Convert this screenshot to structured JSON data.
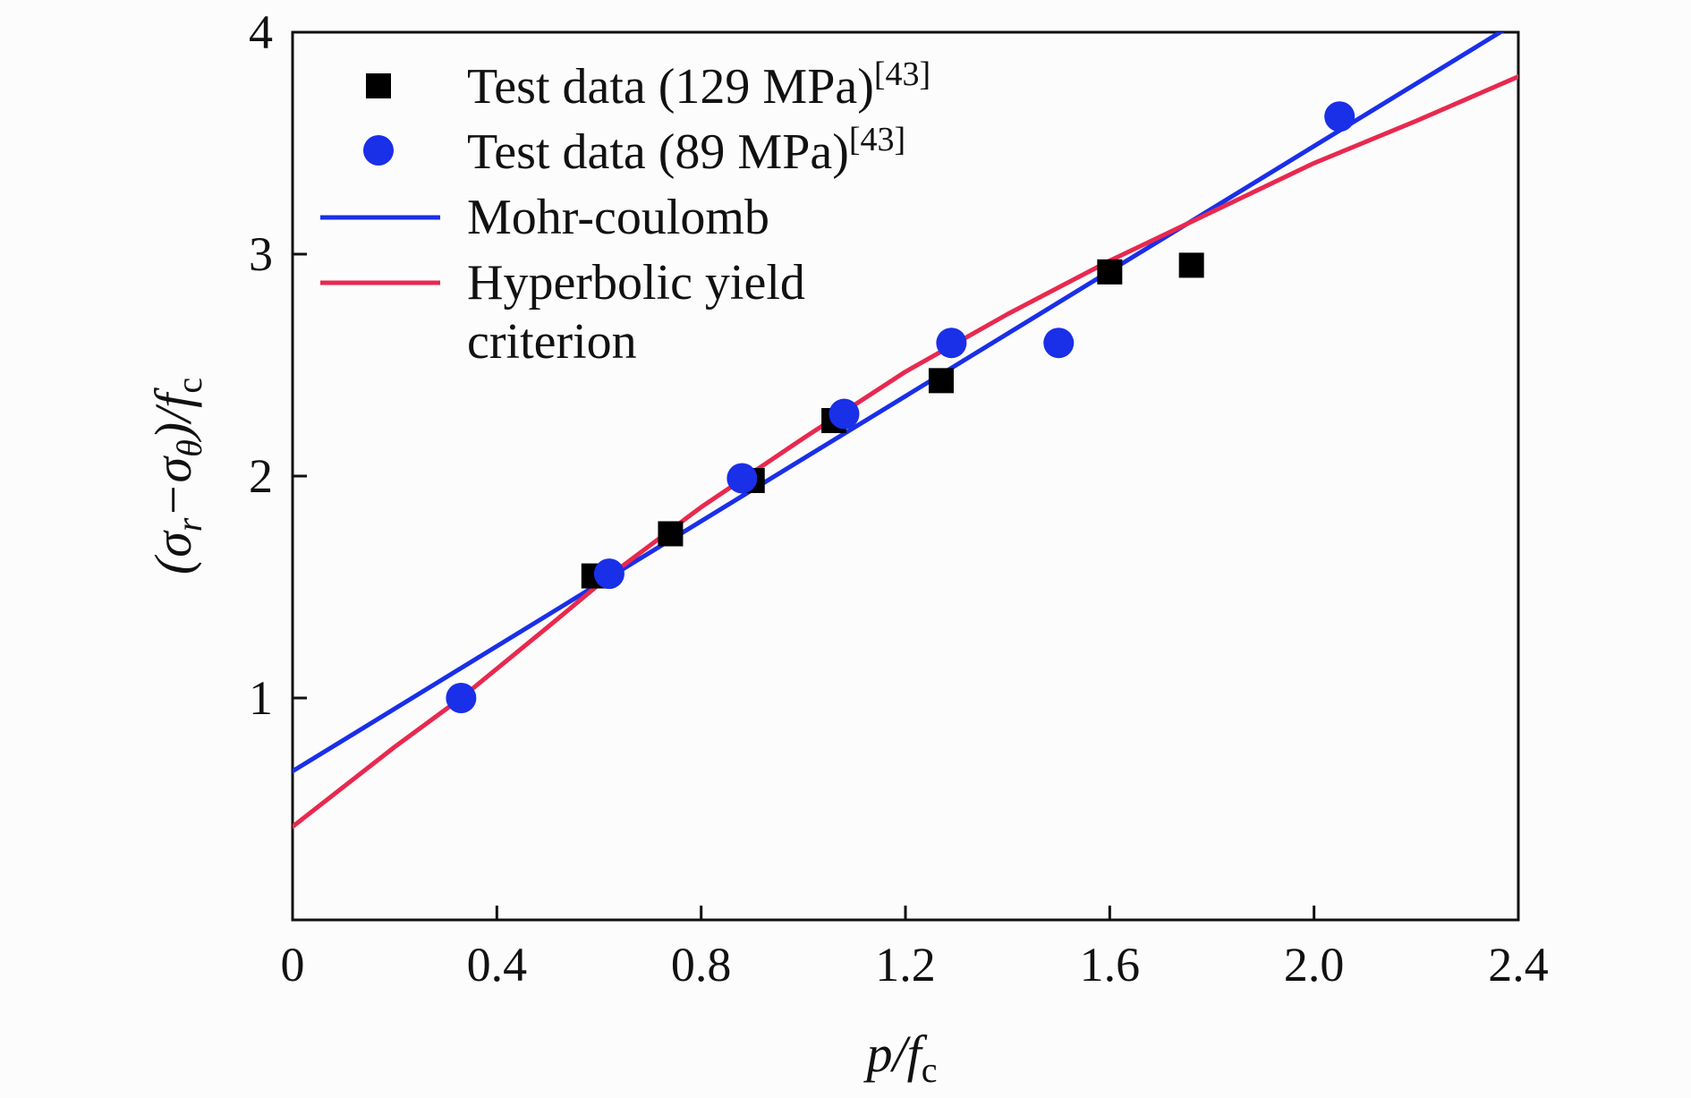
{
  "chart_data": {
    "type": "scatter",
    "xlabel": {
      "main": "p/f",
      "sub": "c"
    },
    "ylabel": {
      "prefix": "(σ",
      "sub1": "r",
      "mid": "−σ",
      "sub2": "θ",
      "suffix": ")/f",
      "sub3": "c"
    },
    "xlim": [
      0,
      2.4
    ],
    "ylim": [
      0,
      4
    ],
    "x_ticks": [
      {
        "value": 0,
        "label": "0"
      },
      {
        "value": 0.4,
        "label": "0.4"
      },
      {
        "value": 0.8,
        "label": "0.8"
      },
      {
        "value": 1.2,
        "label": "1.2"
      },
      {
        "value": 1.6,
        "label": "1.6"
      },
      {
        "value": 2.0,
        "label": "2.0"
      },
      {
        "value": 2.4,
        "label": "2.4"
      }
    ],
    "y_ticks": [
      {
        "value": 1,
        "label": "1"
      },
      {
        "value": 2,
        "label": "2"
      },
      {
        "value": 3,
        "label": "3"
      },
      {
        "value": 4,
        "label": "4"
      }
    ],
    "grid": false,
    "legend_position": "top-left",
    "series": [
      {
        "name": "Test data (129 MPa)",
        "name_sup": "[43]",
        "kind": "scatter",
        "marker": "square",
        "color": "#000000",
        "points": [
          {
            "x": 0.59,
            "y": 1.55
          },
          {
            "x": 0.74,
            "y": 1.74
          },
          {
            "x": 0.9,
            "y": 1.98
          },
          {
            "x": 1.06,
            "y": 2.25
          },
          {
            "x": 1.27,
            "y": 2.43
          },
          {
            "x": 1.6,
            "y": 2.92
          },
          {
            "x": 1.76,
            "y": 2.95
          }
        ]
      },
      {
        "name": "Test data (89 MPa)",
        "name_sup": "[43]",
        "kind": "scatter",
        "marker": "circle",
        "color": "#1a2fe8",
        "points": [
          {
            "x": 0.33,
            "y": 1.0
          },
          {
            "x": 0.62,
            "y": 1.56
          },
          {
            "x": 0.88,
            "y": 1.99
          },
          {
            "x": 1.08,
            "y": 2.28
          },
          {
            "x": 1.29,
            "y": 2.6
          },
          {
            "x": 1.5,
            "y": 2.6
          },
          {
            "x": 2.05,
            "y": 3.62
          }
        ]
      },
      {
        "name": "Mohr-coulomb",
        "kind": "line",
        "color": "#1a2fe8",
        "points": [
          {
            "x": 0,
            "y": 0.67
          },
          {
            "x": 2.4,
            "y": 4.05
          }
        ]
      },
      {
        "name": "Hyperbolic yield criterion",
        "name_lines": [
          "Hyperbolic yield",
          "criterion"
        ],
        "kind": "line",
        "color": "#e8294f",
        "points": [
          {
            "x": 0,
            "y": 0.42
          },
          {
            "x": 0.1,
            "y": 0.6
          },
          {
            "x": 0.2,
            "y": 0.78
          },
          {
            "x": 0.33,
            "y": 1.0
          },
          {
            "x": 0.5,
            "y": 1.32
          },
          {
            "x": 0.62,
            "y": 1.55
          },
          {
            "x": 0.8,
            "y": 1.86
          },
          {
            "x": 1.0,
            "y": 2.17
          },
          {
            "x": 1.2,
            "y": 2.47
          },
          {
            "x": 1.4,
            "y": 2.73
          },
          {
            "x": 1.6,
            "y": 2.97
          },
          {
            "x": 1.8,
            "y": 3.19
          },
          {
            "x": 2.0,
            "y": 3.41
          },
          {
            "x": 2.2,
            "y": 3.6
          },
          {
            "x": 2.4,
            "y": 3.8
          }
        ]
      }
    ]
  }
}
